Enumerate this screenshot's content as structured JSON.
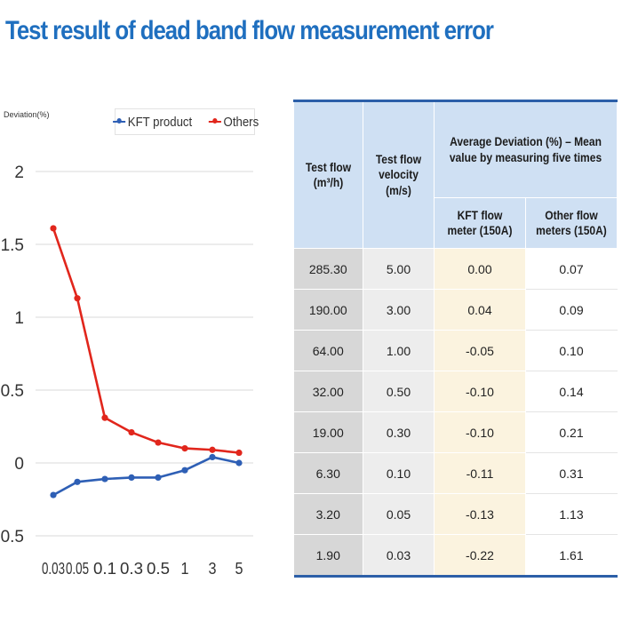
{
  "title": "Test result of dead band flow measurement error",
  "chart_data": {
    "type": "line",
    "ylabel": "Deviation(%)",
    "categories": [
      "0.03",
      "0.05",
      "0.1",
      "0.3",
      "0.5",
      "1",
      "3",
      "5"
    ],
    "yticks": [
      "2",
      "1.5",
      "1",
      "0.5",
      "0",
      "-0.5"
    ],
    "ylim": [
      -0.5,
      2
    ],
    "grid": true,
    "legend_position": "top-right",
    "series": [
      {
        "name": "KFT product",
        "color": "#2e5fb5",
        "values": [
          -0.22,
          -0.13,
          -0.11,
          -0.1,
          -0.1,
          -0.05,
          0.04,
          0.0
        ]
      },
      {
        "name": "Others",
        "color": "#e1261c",
        "values": [
          1.61,
          1.13,
          0.31,
          0.21,
          0.14,
          0.1,
          0.09,
          0.07
        ]
      }
    ]
  },
  "table": {
    "headers": {
      "test_flow": "Test flow (m³/h)",
      "velocity": "Test flow velocity (m/s)",
      "avg_dev": "Average Deviation (%) – Mean value by measuring five times",
      "kft": "KFT flow meter (150A)",
      "other": "Other flow meters (150A)"
    },
    "rows": [
      [
        "285.30",
        "5.00",
        "0.00",
        "0.07"
      ],
      [
        "190.00",
        "3.00",
        "0.04",
        "0.09"
      ],
      [
        "64.00",
        "1.00",
        "-0.05",
        "0.10"
      ],
      [
        "32.00",
        "0.50",
        "-0.10",
        "0.14"
      ],
      [
        "19.00",
        "0.30",
        "-0.10",
        "0.21"
      ],
      [
        "6.30",
        "0.10",
        "-0.11",
        "0.31"
      ],
      [
        "3.20",
        "0.05",
        "-0.13",
        "1.13"
      ],
      [
        "1.90",
        "0.03",
        "-0.22",
        "1.61"
      ]
    ]
  }
}
